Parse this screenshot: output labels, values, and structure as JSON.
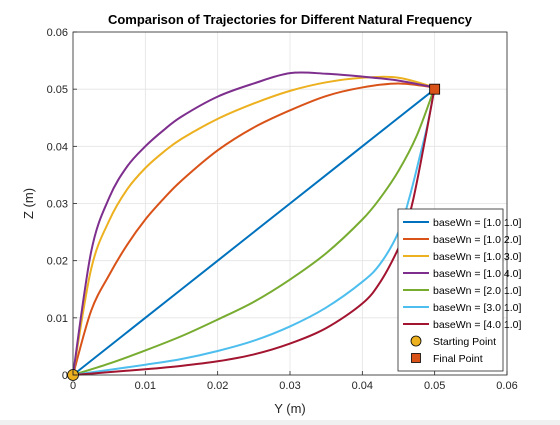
{
  "chart_data": {
    "type": "line",
    "title": "Comparison of Trajectories for Different Natural Frequency",
    "xlabel": "Y (m)",
    "ylabel": "Z (m)",
    "xlim": [
      0,
      0.06
    ],
    "ylim": [
      0,
      0.06
    ],
    "xticks": [
      "0",
      "0.01",
      "0.02",
      "0.03",
      "0.04",
      "0.05",
      "0.06"
    ],
    "yticks": [
      "0",
      "0.01",
      "0.02",
      "0.03",
      "0.04",
      "0.05",
      "0.06"
    ],
    "grid": true,
    "legend_location": "bottom-right",
    "series": [
      {
        "name": "baseWn = [1.0 1.0]",
        "color": "#0072BD",
        "x": [
          0,
          0.01,
          0.02,
          0.03,
          0.04,
          0.05
        ],
        "y": [
          0,
          0.01,
          0.02,
          0.03,
          0.04,
          0.05
        ]
      },
      {
        "name": "baseWn = [1.0 2.0]",
        "color": "#D95319",
        "x": [
          0,
          0.0025,
          0.005,
          0.0075,
          0.01,
          0.0125,
          0.015,
          0.02,
          0.025,
          0.03,
          0.035,
          0.04,
          0.045,
          0.05
        ],
        "y": [
          0,
          0.0112,
          0.0175,
          0.0228,
          0.0272,
          0.0308,
          0.034,
          0.0393,
          0.0433,
          0.0463,
          0.0488,
          0.0503,
          0.051,
          0.0503
        ]
      },
      {
        "name": "baseWn = [1.0 3.0]",
        "color": "#EDB120",
        "x": [
          0,
          0.0025,
          0.005,
          0.0075,
          0.01,
          0.0125,
          0.015,
          0.02,
          0.025,
          0.03,
          0.035,
          0.04,
          0.045,
          0.05
        ],
        "y": [
          0,
          0.0185,
          0.027,
          0.0325,
          0.0362,
          0.039,
          0.0413,
          0.0448,
          0.0475,
          0.0497,
          0.0512,
          0.052,
          0.052,
          0.0503
        ]
      },
      {
        "name": "baseWn = [1.0 4.0]",
        "color": "#7E2F8E",
        "x": [
          0,
          0.0025,
          0.005,
          0.0075,
          0.01,
          0.0125,
          0.015,
          0.02,
          0.025,
          0.03,
          0.035,
          0.04,
          0.045,
          0.05
        ],
        "y": [
          0,
          0.0215,
          0.031,
          0.0365,
          0.04,
          0.0428,
          0.0452,
          0.0487,
          0.051,
          0.0528,
          0.0527,
          0.0522,
          0.0515,
          0.0503
        ]
      },
      {
        "name": "baseWn = [2.0 1.0]",
        "color": "#77AC30",
        "x": [
          0,
          0.005,
          0.01,
          0.015,
          0.02,
          0.025,
          0.03,
          0.035,
          0.04,
          0.0425,
          0.045,
          0.0475,
          0.05
        ],
        "y": [
          0,
          0.002,
          0.0043,
          0.0068,
          0.0097,
          0.0128,
          0.0167,
          0.0213,
          0.0272,
          0.031,
          0.0357,
          0.0418,
          0.0503
        ]
      },
      {
        "name": "baseWn = [3.0 1.0]",
        "color": "#4DBEEE",
        "x": [
          0,
          0.005,
          0.01,
          0.015,
          0.02,
          0.025,
          0.03,
          0.035,
          0.04,
          0.0425,
          0.045,
          0.0465,
          0.048,
          0.049,
          0.05
        ],
        "y": [
          0,
          0.0009,
          0.0018,
          0.0028,
          0.0042,
          0.006,
          0.0085,
          0.0118,
          0.0163,
          0.0195,
          0.025,
          0.031,
          0.0385,
          0.0437,
          0.0503
        ]
      },
      {
        "name": "baseWn = [4.0 1.0]",
        "color": "#A2142F",
        "x": [
          0,
          0.005,
          0.01,
          0.015,
          0.02,
          0.025,
          0.03,
          0.035,
          0.04,
          0.0425,
          0.045,
          0.046,
          0.047,
          0.048,
          0.049,
          0.05
        ],
        "y": [
          0,
          0.0005,
          0.001,
          0.0016,
          0.0024,
          0.0036,
          0.0055,
          0.0082,
          0.0125,
          0.0163,
          0.0222,
          0.0257,
          0.0305,
          0.0367,
          0.0434,
          0.0503
        ]
      }
    ],
    "markers": [
      {
        "name": "Starting Point",
        "shape": "circle",
        "color": "#EDB120",
        "x": 0,
        "y": 0
      },
      {
        "name": "Final Point",
        "shape": "square",
        "color": "#D95319",
        "x": 0.05,
        "y": 0.05
      }
    ]
  }
}
